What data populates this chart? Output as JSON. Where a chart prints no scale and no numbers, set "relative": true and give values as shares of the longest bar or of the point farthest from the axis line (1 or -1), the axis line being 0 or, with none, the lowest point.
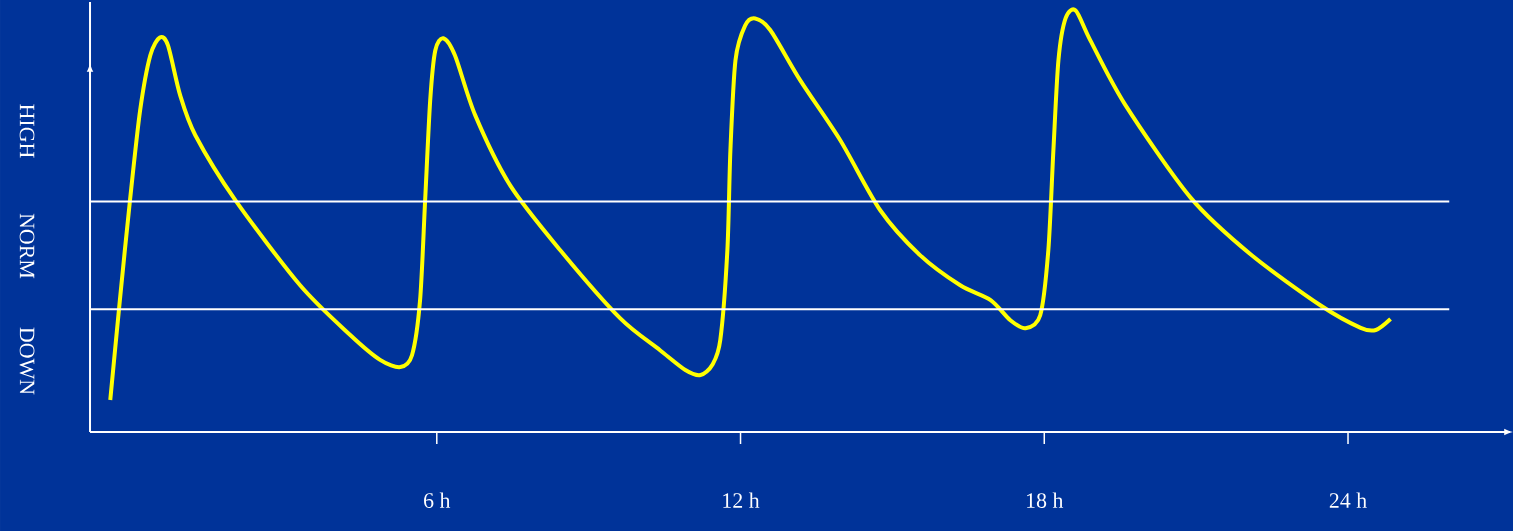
{
  "chart_data": {
    "type": "line",
    "relative": true,
    "x": [
      -0.45,
      -0.26,
      -0.06,
      0.14,
      0.34,
      0.53,
      0.69,
      0.93,
      1.23,
      2.02,
      3.3,
      4.29,
      4.88,
      5.28,
      5.51,
      5.67,
      5.77,
      5.87,
      5.97,
      6.13,
      6.36,
      6.76,
      7.45,
      8.44,
      9.62,
      10.41,
      10.91,
      11.21,
      11.44,
      11.6,
      11.74,
      11.8,
      11.9,
      12.09,
      12.29,
      12.59,
      13.18,
      13.97,
      14.76,
      15.55,
      16.34,
      16.94,
      17.33,
      17.63,
      17.92,
      18.08,
      18.18,
      18.28,
      18.42,
      18.62,
      18.91,
      19.6,
      20.89,
      22.08,
      23.46,
      24.25,
      24.55,
      24.84
    ],
    "series": [
      {
        "color": "#ffff00",
        "values": [
          0.076,
          0.313,
          0.55,
          0.763,
          0.893,
          0.936,
          0.917,
          0.799,
          0.704,
          0.55,
          0.348,
          0.23,
          0.171,
          0.154,
          0.182,
          0.313,
          0.55,
          0.787,
          0.905,
          0.934,
          0.893,
          0.751,
          0.585,
          0.431,
          0.27,
          0.194,
          0.147,
          0.135,
          0.159,
          0.218,
          0.431,
          0.668,
          0.882,
          0.964,
          0.981,
          0.953,
          0.834,
          0.692,
          0.526,
          0.419,
          0.348,
          0.313,
          0.265,
          0.246,
          0.277,
          0.431,
          0.668,
          0.882,
          0.981,
          1.0,
          0.929,
          0.776,
          0.556,
          0.421,
          0.3,
          0.247,
          0.242,
          0.268
        ]
      }
    ],
    "xlim": [
      -0.85,
      27.2
    ],
    "xticks": [
      {
        "value": 6,
        "label": "6 h"
      },
      {
        "value": 12,
        "label": "12 h"
      },
      {
        "value": 18,
        "label": "18 h"
      },
      {
        "value": 24,
        "label": "24 h"
      }
    ],
    "ref_lines": [
      {
        "axis": "y",
        "value": 0.547,
        "color": "#ffffff"
      },
      {
        "axis": "y",
        "value": 0.291,
        "color": "#ffffff"
      }
    ],
    "annotations": [
      "HIGH",
      "NORM",
      "DOWN"
    ]
  }
}
